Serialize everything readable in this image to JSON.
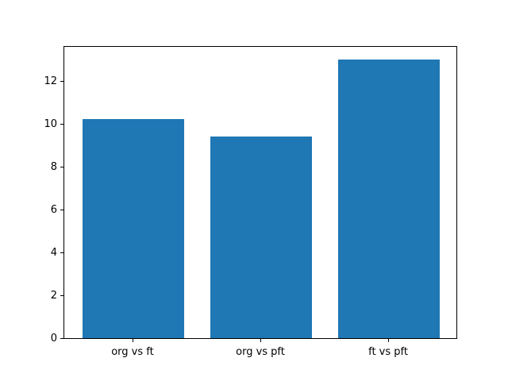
{
  "figure": {
    "background_color": "#ffffff",
    "spine_color": "#000000",
    "tick_label_color": "#000000"
  },
  "chart_data": {
    "type": "bar",
    "categories": [
      "org vs ft",
      "org vs pft",
      "ft vs pft"
    ],
    "values": [
      10.2,
      9.4,
      13.0
    ],
    "bar_color": "#1f77b4",
    "bar_width_fraction": 0.8,
    "xlim": [
      -0.54,
      2.54
    ],
    "ylim": [
      0,
      13.65
    ],
    "yticks": [
      0,
      2,
      4,
      6,
      8,
      10,
      12
    ],
    "grid": false,
    "legend": false,
    "title": "",
    "xlabel": "",
    "ylabel": ""
  }
}
